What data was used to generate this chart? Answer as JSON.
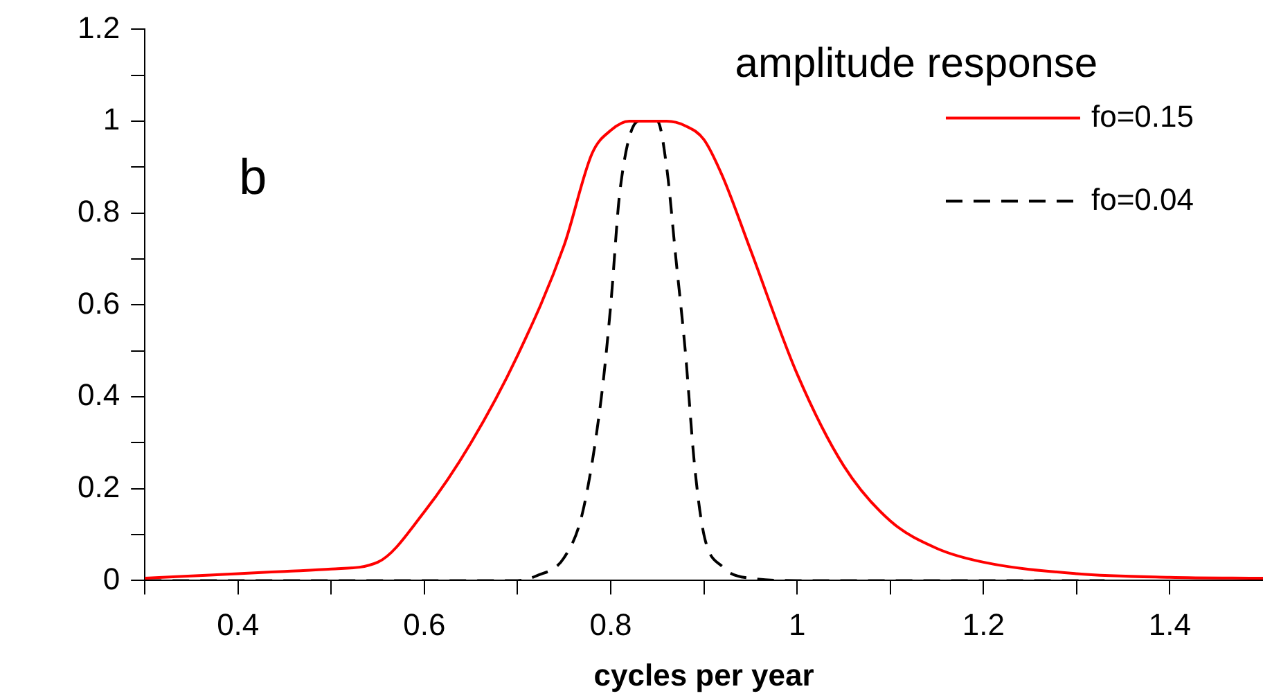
{
  "chart_data": {
    "type": "line",
    "title": "amplitude response",
    "xlabel": "cycles per year",
    "annotations": [
      "b"
    ],
    "series": [
      {
        "name": "fo=0.15",
        "color": "#ff0000",
        "line_style": "solid",
        "x": [
          0.3,
          0.37,
          0.4,
          0.45,
          0.5,
          0.55,
          0.6,
          0.65,
          0.7,
          0.75,
          0.78,
          0.8,
          0.82,
          0.86,
          0.88,
          0.9,
          0.92,
          0.95,
          1.0,
          1.05,
          1.1,
          1.15,
          1.2,
          1.3,
          1.4,
          1.5
        ],
        "values": [
          0.005,
          0.012,
          0.015,
          0.02,
          0.025,
          0.04,
          0.15,
          0.3,
          0.49,
          0.73,
          0.93,
          0.98,
          1.0,
          1.0,
          0.99,
          0.96,
          0.88,
          0.72,
          0.45,
          0.25,
          0.13,
          0.07,
          0.04,
          0.015,
          0.007,
          0.005
        ]
      },
      {
        "name": "fo=0.04",
        "color": "#000000",
        "line_style": "dashed",
        "x": [
          0.3,
          0.5,
          0.7,
          0.72,
          0.75,
          0.77,
          0.79,
          0.8,
          0.81,
          0.83,
          0.85,
          0.86,
          0.87,
          0.88,
          0.89,
          0.9,
          0.92,
          0.95,
          1.0,
          1.33
        ],
        "values": [
          0.0,
          0.0,
          0.0,
          0.01,
          0.05,
          0.15,
          0.4,
          0.6,
          0.85,
          1.0,
          1.0,
          0.9,
          0.7,
          0.5,
          0.25,
          0.1,
          0.03,
          0.005,
          0.0,
          0.0
        ]
      }
    ],
    "xlim": [
      0.3,
      1.5
    ],
    "xticks": [
      {
        "value": 0.3,
        "label": null
      },
      0.4,
      {
        "value": 0.5,
        "label": null
      },
      0.6,
      {
        "value": 0.7,
        "label": null
      },
      0.8,
      {
        "value": 0.9,
        "label": null
      },
      1,
      {
        "value": 1.1,
        "label": null
      },
      1.2,
      {
        "value": 1.3,
        "label": null
      },
      1.4
    ],
    "ylim": [
      0,
      1.2
    ],
    "yticks": [
      0,
      {
        "value": 0.1,
        "label": null
      },
      0.2,
      {
        "value": 0.3,
        "label": null
      },
      0.4,
      {
        "value": 0.5,
        "label": null
      },
      0.6,
      {
        "value": 0.7,
        "label": null
      },
      0.8,
      {
        "value": 0.9,
        "label": null
      },
      1,
      {
        "value": 1.1,
        "label": null
      },
      1.2
    ],
    "grid": false,
    "legend": "top right",
    "marker": "none"
  }
}
